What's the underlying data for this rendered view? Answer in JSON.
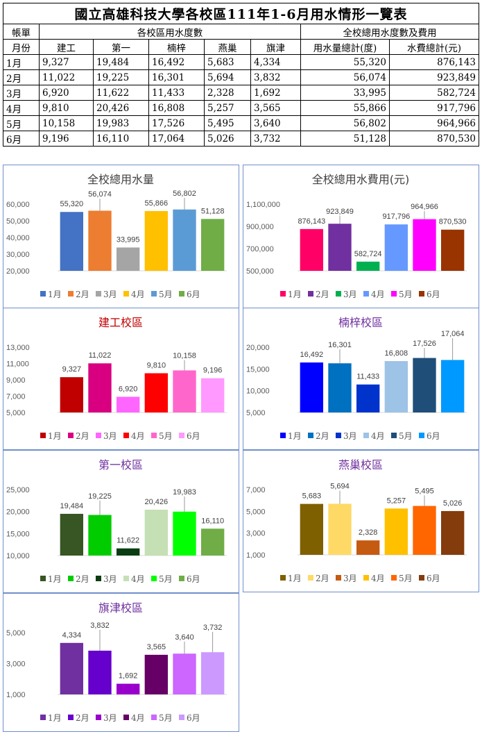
{
  "table": {
    "title": "國立高雄科技大學各校區111年1-6月用水情形一覽表",
    "corner_top": "帳單",
    "corner_bottom": "月份",
    "group_campus": "各校區用水度數",
    "group_total": "全校總用水度數及費用",
    "columns": [
      "建工",
      "第一",
      "楠梓",
      "燕巢",
      "旗津",
      "用水量總計(度)",
      "水費總計(元)"
    ],
    "rows": [
      {
        "month": "1月",
        "values": [
          "9,327",
          "19,484",
          "16,492",
          "5,683",
          "4,334",
          "55,320",
          "876,143"
        ]
      },
      {
        "month": "2月",
        "values": [
          "11,022",
          "19,225",
          "16,301",
          "5,694",
          "3,832",
          "56,074",
          "923,849"
        ]
      },
      {
        "month": "3月",
        "values": [
          "6,920",
          "11,622",
          "11,433",
          "2,328",
          "1,692",
          "33,995",
          "582,724"
        ]
      },
      {
        "month": "4月",
        "values": [
          "9,810",
          "20,426",
          "16,808",
          "5,257",
          "3,565",
          "55,866",
          "917,796"
        ]
      },
      {
        "month": "5月",
        "values": [
          "10,158",
          "19,983",
          "17,526",
          "5,495",
          "3,640",
          "56,802",
          "964,966"
        ]
      },
      {
        "month": "6月",
        "values": [
          "9,196",
          "16,110",
          "17,064",
          "5,026",
          "3,732",
          "51,128",
          "870,530"
        ]
      }
    ]
  },
  "chart_data": [
    {
      "type": "bar",
      "title": "全校總用水量",
      "title_color": "#404040",
      "categories": [
        "1月",
        "2月",
        "3月",
        "4月",
        "5月",
        "6月"
      ],
      "values": [
        55320,
        56074,
        33995,
        55866,
        56802,
        51128
      ],
      "colors": [
        "#4472c4",
        "#ed7d31",
        "#a5a5a5",
        "#ffc000",
        "#5b9bd5",
        "#70ad47"
      ],
      "ylim": [
        20000,
        60000
      ],
      "yticks": [
        20000,
        30000,
        40000,
        50000,
        60000
      ],
      "ytick_labels": [
        "20,000",
        "30,000",
        "40,000",
        "50,000",
        "60,000"
      ],
      "labels": [
        "55,320",
        "56,074",
        "33,995",
        "55,866",
        "56,802",
        "51,128"
      ],
      "legend": [
        "1月",
        "2月",
        "3月",
        "4月",
        "5月",
        "6月"
      ],
      "legend_position": "bottom",
      "grid": false
    },
    {
      "type": "bar",
      "title": "全校總用水費用(元)",
      "title_color": "#404040",
      "categories": [
        "1月",
        "2月",
        "3月",
        "4月",
        "5月",
        "6月"
      ],
      "values": [
        876143,
        923849,
        582724,
        917796,
        964966,
        870530
      ],
      "colors": [
        "#ff0066",
        "#7030a0",
        "#00b050",
        "#6699ff",
        "#ff00ff",
        "#993300"
      ],
      "ylim": [
        500000,
        1100000
      ],
      "yticks": [
        500000,
        700000,
        900000,
        1100000
      ],
      "ytick_labels": [
        "500,000",
        "700,000",
        "900,000",
        "1,100,000"
      ],
      "labels": [
        "876,143",
        "923,849",
        "582,724",
        "917,796",
        "964,966",
        "870,530"
      ],
      "legend": [
        "1月",
        "2月",
        "3月",
        "4月",
        "5月",
        "6月"
      ],
      "legend_position": "bottom",
      "grid": false
    },
    {
      "type": "bar",
      "title": "建工校區",
      "title_color": "#c00000",
      "categories": [
        "1月",
        "2月",
        "3月",
        "4月",
        "5月",
        "6月"
      ],
      "values": [
        9327,
        11022,
        6920,
        9810,
        10158,
        9196
      ],
      "colors": [
        "#c00000",
        "#d80080",
        "#ff66ff",
        "#ff0000",
        "#ff66cc",
        "#ff99ff"
      ],
      "ylim": [
        5000,
        13000
      ],
      "yticks": [
        5000,
        7000,
        9000,
        11000,
        13000
      ],
      "ytick_labels": [
        "5,000",
        "7,000",
        "9,000",
        "11,000",
        "13,000"
      ],
      "labels": [
        "9,327",
        "11,022",
        "6,920",
        "9,810",
        "10,158",
        "9,196"
      ],
      "legend": [
        "1月",
        "2月",
        "3月",
        "4月",
        "5月",
        "6月"
      ],
      "legend_position": "bottom",
      "grid": false
    },
    {
      "type": "bar",
      "title": "楠梓校區",
      "title_color": "#7030a0",
      "categories": [
        "1月",
        "2月",
        "3月",
        "4月",
        "5月",
        "6月"
      ],
      "values": [
        16492,
        16301,
        11433,
        16808,
        17526,
        17064
      ],
      "colors": [
        "#0000ff",
        "#0070c0",
        "#0033cc",
        "#9dc3e6",
        "#1f4e79",
        "#0099ff"
      ],
      "ylim": [
        5000,
        20000
      ],
      "yticks": [
        5000,
        10000,
        15000,
        20000
      ],
      "ytick_labels": [
        "5,000",
        "10,000",
        "15,000",
        "20,000"
      ],
      "labels": [
        "16,492",
        "16,301",
        "11,433",
        "16,808",
        "17,526",
        "17,064"
      ],
      "legend": [
        "1月",
        "2月",
        "3月",
        "4月",
        "5月",
        "6月"
      ],
      "legend_position": "bottom",
      "grid": false
    },
    {
      "type": "bar",
      "title": "第一校區",
      "title_color": "#7030a0",
      "categories": [
        "1月",
        "2月",
        "3月",
        "4月",
        "5月",
        "6月"
      ],
      "values": [
        19484,
        19225,
        11622,
        20426,
        19983,
        16110
      ],
      "colors": [
        "#375623",
        "#00cc00",
        "#0b3d12",
        "#c5e0b4",
        "#00ff00",
        "#70ad47"
      ],
      "ylim": [
        10000,
        25000
      ],
      "yticks": [
        10000,
        15000,
        20000,
        25000
      ],
      "ytick_labels": [
        "10,000",
        "15,000",
        "20,000",
        "25,000"
      ],
      "labels": [
        "19,484",
        "19,225",
        "11,622",
        "20,426",
        "19,983",
        "16,110"
      ],
      "legend": [
        "1月",
        "2月",
        "3月",
        "4月",
        "5月",
        "6月"
      ],
      "legend_position": "bottom",
      "grid": false
    },
    {
      "type": "bar",
      "title": "燕巢校區",
      "title_color": "#7030a0",
      "categories": [
        "1月",
        "2月",
        "3月",
        "4月",
        "5月",
        "6月"
      ],
      "values": [
        5683,
        5694,
        2328,
        5257,
        5495,
        5026
      ],
      "colors": [
        "#7f6000",
        "#ffd966",
        "#c55a11",
        "#ffc000",
        "#ff6600",
        "#843c0c"
      ],
      "ylim": [
        1000,
        7000
      ],
      "yticks": [
        1000,
        3000,
        5000,
        7000
      ],
      "ytick_labels": [
        "1,000",
        "3,000",
        "5,000",
        "7,000"
      ],
      "labels": [
        "5,683",
        "5,694",
        "2,328",
        "5,257",
        "5,495",
        "5,026"
      ],
      "legend": [
        "1月",
        "2月",
        "3月",
        "4月",
        "5月",
        "6月"
      ],
      "legend_position": "bottom",
      "grid": false
    },
    {
      "type": "bar",
      "title": "旗津校區",
      "title_color": "#7030a0",
      "categories": [
        "1月",
        "2月",
        "3月",
        "4月",
        "5月",
        "6月"
      ],
      "values": [
        4334,
        3832,
        1692,
        3565,
        3640,
        3732
      ],
      "colors": [
        "#7030a0",
        "#6600cc",
        "#9900cc",
        "#660066",
        "#cc66ff",
        "#cc99ff"
      ],
      "ylim": [
        1000,
        5000
      ],
      "yticks": [
        1000,
        3000,
        5000
      ],
      "ytick_labels": [
        "1,000",
        "3,000",
        "5,000"
      ],
      "labels": [
        "4,334",
        "3,832",
        "1,692",
        "3,565",
        "3,640",
        "3,732"
      ],
      "legend": [
        "1月",
        "2月",
        "3月",
        "4月",
        "5月",
        "6月"
      ],
      "legend_position": "bottom",
      "grid": false
    }
  ]
}
